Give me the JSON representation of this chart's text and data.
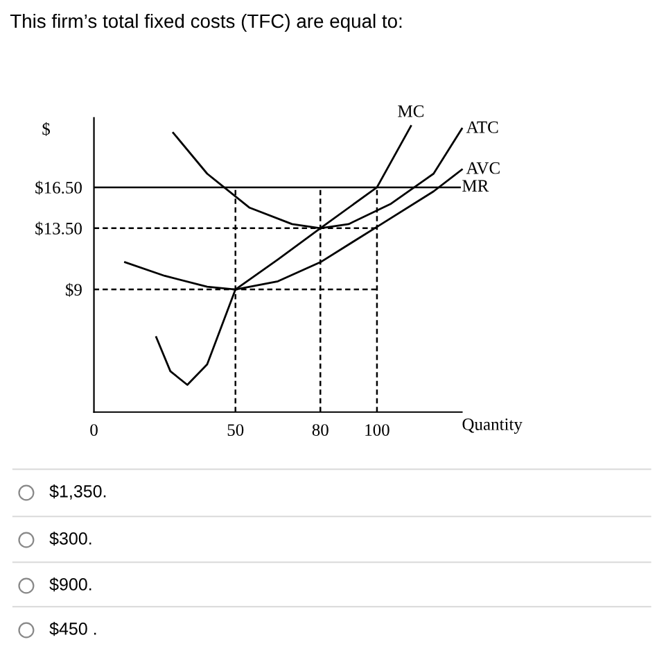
{
  "chart_data": {
    "type": "line",
    "title": "This firm’s total fixed costs (TFC) are equal to:",
    "xlabel": "Quantity",
    "ylabel": "$",
    "xlim": [
      0,
      130
    ],
    "ylim": [
      0,
      21.6
    ],
    "xticks": [
      0,
      50,
      80,
      100
    ],
    "yticks": [
      {
        "value": 9,
        "label": "$9"
      },
      {
        "value": 13.5,
        "label": "$13.50"
      },
      {
        "value": 16.5,
        "label": "$16.50"
      }
    ],
    "grid": false,
    "legend": false,
    "marker": "none",
    "line_style": "solid",
    "series": [
      {
        "name": "MC",
        "color": "#000000",
        "x": [
          22,
          27,
          33,
          40,
          50,
          65,
          80,
          100,
          112
        ],
        "values": [
          5.5,
          3,
          2,
          3.5,
          9,
          11.2,
          13.5,
          16.5,
          21
        ]
      },
      {
        "name": "ATC",
        "color": "#000000",
        "x": [
          28,
          40,
          55,
          70,
          80,
          90,
          105,
          120,
          130
        ],
        "values": [
          20.5,
          17.5,
          15,
          13.8,
          13.5,
          13.8,
          15.3,
          17.5,
          20.8
        ]
      },
      {
        "name": "AVC",
        "color": "#000000",
        "x": [
          11,
          25,
          40,
          50,
          65,
          80,
          100,
          120,
          130
        ],
        "values": [
          11,
          10,
          9.2,
          9,
          9.6,
          11,
          13.6,
          16.2,
          17.8
        ]
      }
    ],
    "ref_lines": [
      {
        "axis": "y",
        "value": 16.5,
        "label": "MR",
        "color": "#000000",
        "line_style": "solid"
      },
      {
        "axis": "y",
        "value": 13.5,
        "color": "#000000",
        "line_style": "dashed"
      },
      {
        "axis": "y",
        "value": 9,
        "color": "#000000",
        "line_style": "dashed"
      },
      {
        "axis": "x",
        "value": 50,
        "color": "#000000",
        "line_style": "dashed"
      },
      {
        "axis": "x",
        "value": 80,
        "color": "#000000",
        "line_style": "dashed"
      },
      {
        "axis": "x",
        "value": 100,
        "color": "#000000",
        "line_style": "dashed"
      }
    ],
    "annotations": [
      "$1,350.",
      "$300.",
      "$900.",
      "$450 ."
    ]
  }
}
